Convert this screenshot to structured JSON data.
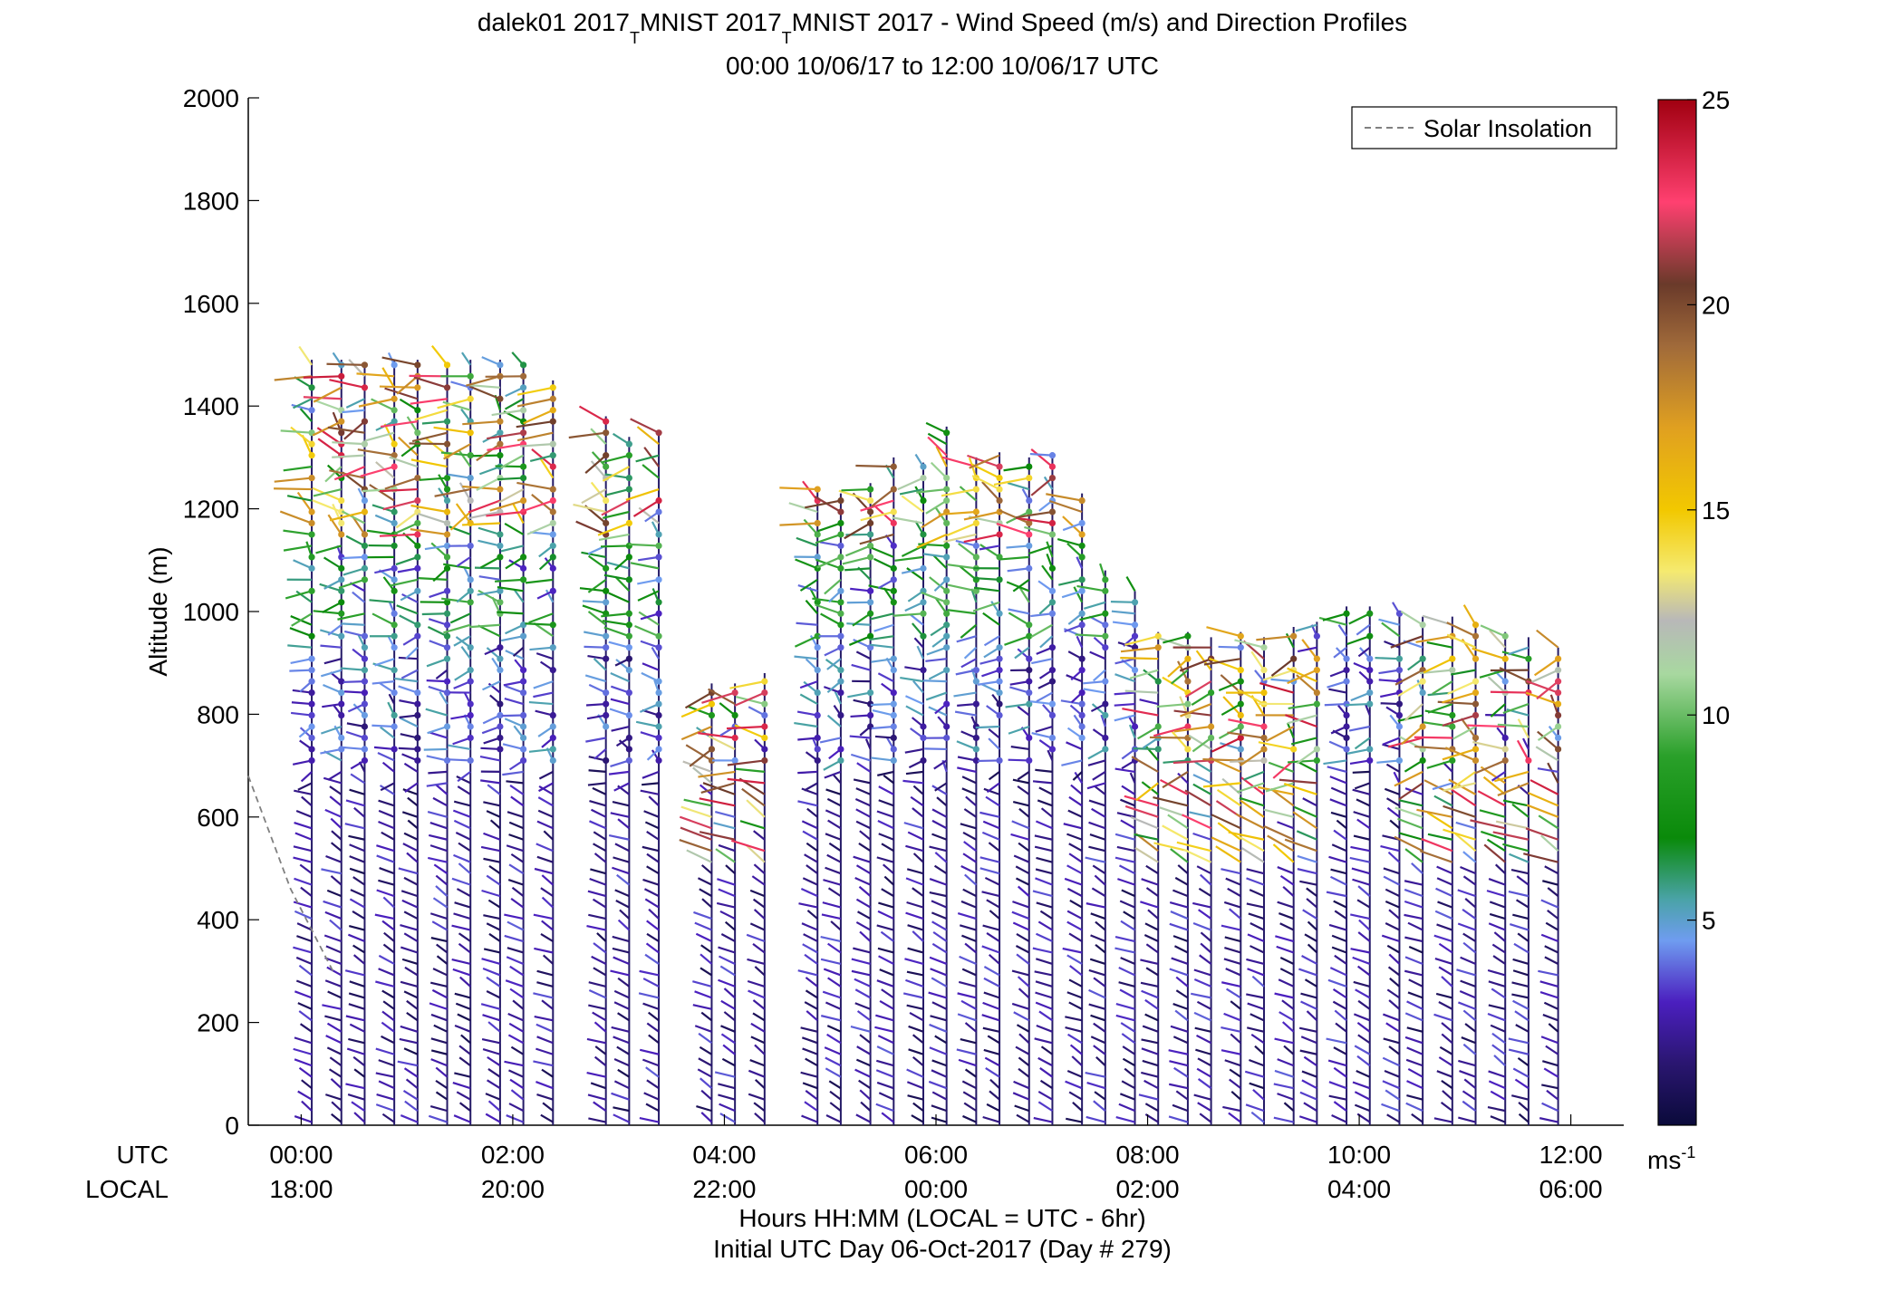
{
  "chart_data": {
    "type": "barb-profile",
    "title_line1_parts": [
      "dalek01 2017",
      "MNIST 2017",
      "MNIST 2017 - Wind Speed (m/s) and Direction Profiles"
    ],
    "title_sub_char": "T",
    "title_line2": "00:00 10/06/17 to 12:00 10/06/17  UTC",
    "ylabel": "Altitude (m)",
    "ylim": [
      0,
      2000
    ],
    "yticks": [
      0,
      200,
      400,
      600,
      800,
      1000,
      1200,
      1400,
      1600,
      1800,
      2000
    ],
    "xlim_hours": [
      -0.5,
      12.5
    ],
    "xticks_hours": [
      0,
      2,
      4,
      6,
      8,
      10,
      12
    ],
    "xtick_labels_utc": [
      "00:00",
      "02:00",
      "04:00",
      "06:00",
      "08:00",
      "10:00",
      "12:00"
    ],
    "xtick_labels_local": [
      "18:00",
      "20:00",
      "22:00",
      "00:00",
      "02:00",
      "04:00",
      "06:00"
    ],
    "x_row_label_utc": "UTC",
    "x_row_label_local": "LOCAL",
    "xlabel_line1": "Hours HH:MM  (LOCAL = UTC - 6hr)",
    "xlabel_line2": "Initial UTC Day 06-Oct-2017 (Day # 279)",
    "legend": {
      "label": "Solar Insolation",
      "placement": "top-right",
      "style": "dashed",
      "color": "#808080"
    },
    "solar_insolation": {
      "x_hours": [
        -0.5,
        -0.1,
        0.3
      ],
      "altitude": [
        680,
        460,
        300
      ]
    },
    "colorbar": {
      "min": 0,
      "max": 25,
      "ticks": [
        5,
        10,
        15,
        20,
        25
      ],
      "unit_label": "ms",
      "unit_exp": "-1",
      "colors": [
        {
          "v": 0,
          "c": "#0a0a3a"
        },
        {
          "v": 1.5,
          "c": "#2a1670"
        },
        {
          "v": 3,
          "c": "#4b1fbf"
        },
        {
          "v": 4.5,
          "c": "#6f9cf0"
        },
        {
          "v": 5.5,
          "c": "#4aa3a8"
        },
        {
          "v": 7,
          "c": "#0a8a0a"
        },
        {
          "v": 9,
          "c": "#2aa02a"
        },
        {
          "v": 11,
          "c": "#a8d8a0"
        },
        {
          "v": 12.3,
          "c": "#b8b8b8"
        },
        {
          "v": 13.5,
          "c": "#f5ea70"
        },
        {
          "v": 15,
          "c": "#f2c800"
        },
        {
          "v": 17,
          "c": "#e0a020"
        },
        {
          "v": 19,
          "c": "#a06a3a"
        },
        {
          "v": 20.5,
          "c": "#6a3a2a"
        },
        {
          "v": 22.5,
          "c": "#ff4070"
        },
        {
          "v": 25,
          "c": "#a00010"
        }
      ]
    },
    "profiles": [
      {
        "t": 0.1,
        "top": 1490
      },
      {
        "t": 0.38,
        "top": 1490
      },
      {
        "t": 0.6,
        "top": 1480
      },
      {
        "t": 0.88,
        "top": 1490
      },
      {
        "t": 1.1,
        "top": 1490
      },
      {
        "t": 1.38,
        "top": 1480
      },
      {
        "t": 1.6,
        "top": 1490
      },
      {
        "t": 1.88,
        "top": 1490
      },
      {
        "t": 2.1,
        "top": 1480
      },
      {
        "t": 2.38,
        "top": 1450
      },
      {
        "t": 2.88,
        "top": 1380
      },
      {
        "t": 3.1,
        "top": 1340
      },
      {
        "t": 3.38,
        "top": 1350
      },
      {
        "t": 3.88,
        "top": 860
      },
      {
        "t": 4.1,
        "top": 860
      },
      {
        "t": 4.38,
        "top": 880
      },
      {
        "t": 4.88,
        "top": 1240
      },
      {
        "t": 5.1,
        "top": 1230
      },
      {
        "t": 5.38,
        "top": 1250
      },
      {
        "t": 5.6,
        "top": 1300
      },
      {
        "t": 5.88,
        "top": 1290
      },
      {
        "t": 6.1,
        "top": 1360
      },
      {
        "t": 6.38,
        "top": 1300
      },
      {
        "t": 6.6,
        "top": 1310
      },
      {
        "t": 6.88,
        "top": 1300
      },
      {
        "t": 7.1,
        "top": 1310
      },
      {
        "t": 7.38,
        "top": 1230
      },
      {
        "t": 7.6,
        "top": 1080
      },
      {
        "t": 7.88,
        "top": 1040
      },
      {
        "t": 8.1,
        "top": 960
      },
      {
        "t": 8.38,
        "top": 960
      },
      {
        "t": 8.6,
        "top": 950
      },
      {
        "t": 8.88,
        "top": 960
      },
      {
        "t": 9.1,
        "top": 950
      },
      {
        "t": 9.38,
        "top": 970
      },
      {
        "t": 9.6,
        "top": 980
      },
      {
        "t": 9.88,
        "top": 1010
      },
      {
        "t": 10.1,
        "top": 1010
      },
      {
        "t": 10.38,
        "top": 1000
      },
      {
        "t": 10.6,
        "top": 990
      },
      {
        "t": 10.88,
        "top": 990
      },
      {
        "t": 11.1,
        "top": 980
      },
      {
        "t": 11.38,
        "top": 960
      },
      {
        "t": 11.6,
        "top": 950
      },
      {
        "t": 11.88,
        "top": 930
      }
    ]
  }
}
